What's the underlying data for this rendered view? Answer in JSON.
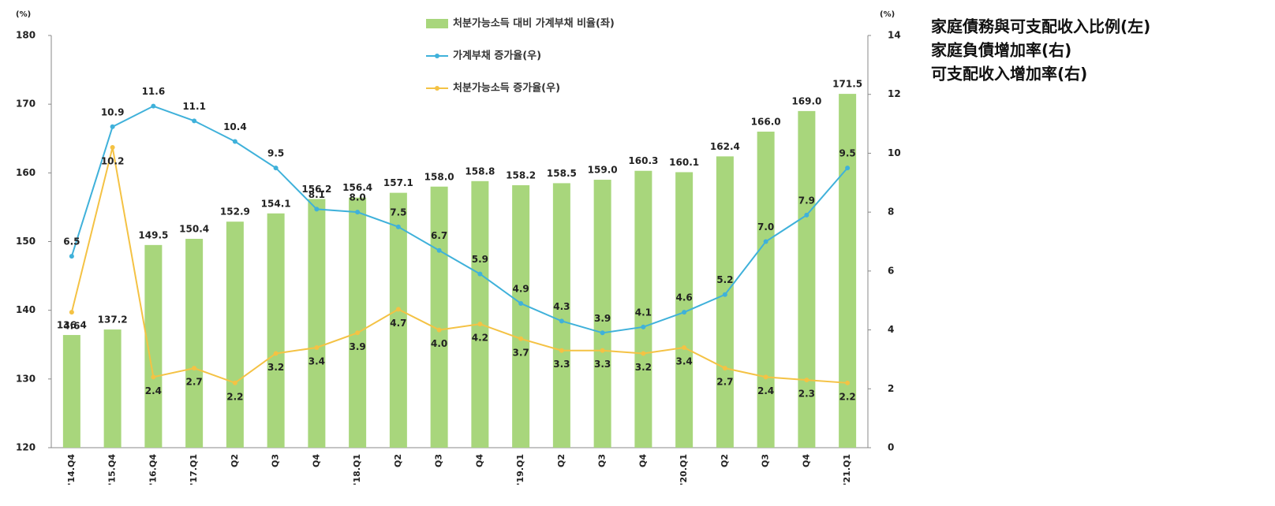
{
  "chart_data": {
    "type": "combo",
    "ylabel": "(%)",
    "y2label": "(%)",
    "categories": [
      "'14.Q4",
      "'15.Q4",
      "'16.Q4",
      "'17.Q1",
      "Q2",
      "Q3",
      "Q4",
      "'18.Q1",
      "Q2",
      "Q3",
      "Q4",
      "'19.Q1",
      "Q2",
      "Q3",
      "Q4",
      "'20.Q1",
      "Q2",
      "Q3",
      "Q4",
      "'21.Q1"
    ],
    "series": [
      {
        "name": "처분가능소득 대비 가계부채 비율(좌)",
        "type": "bar",
        "color": "#a8d67c",
        "values": [
          136.4,
          137.2,
          149.5,
          150.4,
          152.9,
          154.1,
          156.2,
          156.4,
          157.1,
          158.0,
          158.8,
          158.2,
          158.5,
          159.0,
          160.3,
          160.1,
          162.4,
          166.0,
          169.0,
          171.5
        ],
        "value_labels": [
          "136.4",
          "137.2",
          "149.5",
          "150.4",
          "152.9",
          "154.1",
          "156.2",
          "156.4",
          "157.1",
          "158.0",
          "158.8",
          "158.2",
          "158.5",
          "159.0",
          "160.3",
          "160.1",
          "162.4",
          "166.0",
          "169.0",
          "171.5"
        ]
      },
      {
        "name": "가계부채 증가율(우)",
        "type": "line",
        "axis": "y2",
        "color": "#3fb1da",
        "values": [
          6.5,
          10.9,
          11.6,
          11.1,
          10.4,
          9.5,
          8.1,
          8.0,
          7.5,
          6.7,
          5.9,
          4.9,
          4.3,
          3.9,
          4.1,
          4.6,
          5.2,
          7.0,
          7.9,
          9.5
        ],
        "value_labels": [
          "6.5",
          "10.9",
          "11.6",
          "11.1",
          "10.4",
          "9.5",
          "8.1",
          "8.0",
          "7.5",
          "6.7",
          "5.9",
          "4.9",
          "4.3",
          "3.9",
          "4.1",
          "4.6",
          "5.2",
          "7.0",
          "7.9",
          "9.5"
        ]
      },
      {
        "name": "처분가능소득 증가율(우)",
        "type": "line",
        "axis": "y2",
        "color": "#f4c244",
        "values": [
          4.6,
          10.2,
          2.4,
          2.7,
          2.2,
          3.2,
          3.4,
          3.9,
          4.7,
          4.0,
          4.2,
          3.7,
          3.3,
          3.3,
          3.2,
          3.4,
          2.7,
          2.4,
          2.3,
          2.2
        ],
        "value_labels": [
          "4.6",
          "10.2",
          "2.4",
          "2.7",
          "2.2",
          "3.2",
          "3.4",
          "3.9",
          "4.7",
          "4.0",
          "4.2",
          "3.7",
          "3.3",
          "3.3",
          "3.2",
          "3.4",
          "2.7",
          "2.4",
          "2.3",
          "2.2"
        ]
      }
    ],
    "ylim": [
      120,
      180
    ],
    "yticks": [
      120,
      130,
      140,
      150,
      160,
      170,
      180
    ],
    "y2lim": [
      0,
      14
    ],
    "y2ticks": [
      0,
      2,
      4,
      6,
      8,
      10,
      12,
      14
    ],
    "notes": [
      "家庭債務與可支配收入比例(左)",
      "家庭負債增加率(右)",
      "可支配收入增加率(右)"
    ]
  }
}
